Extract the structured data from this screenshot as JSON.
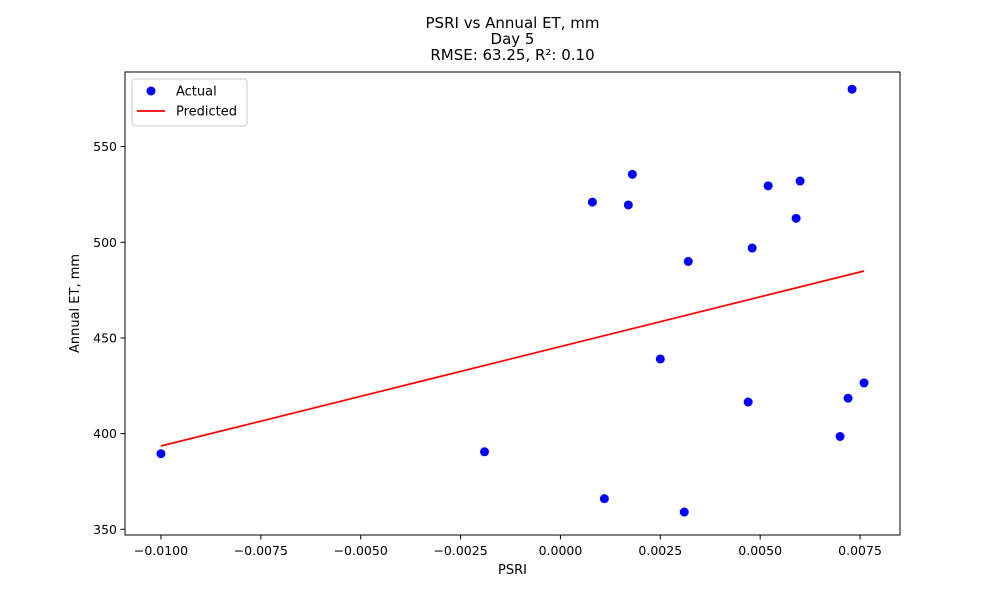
{
  "chart_data": {
    "type": "scatter",
    "title": [
      "PSRI vs Annual ET, mm",
      "Day 5",
      "RMSE: 63.25, R²: 0.10"
    ],
    "xlabel": "PSRI",
    "ylabel": "Annual ET, mm",
    "xlim": [
      -0.0109,
      0.0085
    ],
    "ylim": [
      347,
      589
    ],
    "xticks": [
      -0.01,
      -0.0075,
      -0.005,
      -0.0025,
      0.0,
      0.0025,
      0.005,
      0.0075
    ],
    "xtick_labels": [
      "−0.0100",
      "−0.0075",
      "−0.0050",
      "−0.0025",
      "0.0000",
      "0.0025",
      "0.0050",
      "0.0075"
    ],
    "yticks": [
      350,
      400,
      450,
      500,
      550
    ],
    "ytick_labels": [
      "350",
      "400",
      "450",
      "500",
      "550"
    ],
    "grid": false,
    "legend_position": "upper-left",
    "series": [
      {
        "name": "Actual",
        "kind": "scatter",
        "color": "#0000ff",
        "points": [
          [
            -0.01,
            389.5
          ],
          [
            -0.0019,
            390.5
          ],
          [
            0.0008,
            521.0
          ],
          [
            0.0011,
            366.0
          ],
          [
            0.0017,
            519.5
          ],
          [
            0.0018,
            535.5
          ],
          [
            0.0025,
            439.0
          ],
          [
            0.0031,
            359.0
          ],
          [
            0.0032,
            490.0
          ],
          [
            0.0047,
            416.5
          ],
          [
            0.0048,
            497.0
          ],
          [
            0.0052,
            529.5
          ],
          [
            0.0059,
            512.5
          ],
          [
            0.006,
            532.0
          ],
          [
            0.007,
            398.5
          ],
          [
            0.0072,
            418.5
          ],
          [
            0.0073,
            580.0
          ],
          [
            0.0076,
            426.5
          ]
        ]
      },
      {
        "name": "Predicted",
        "kind": "line",
        "color": "#ff0000",
        "points": [
          [
            -0.01,
            393.5
          ],
          [
            0.0076,
            485.0
          ]
        ]
      }
    ]
  }
}
